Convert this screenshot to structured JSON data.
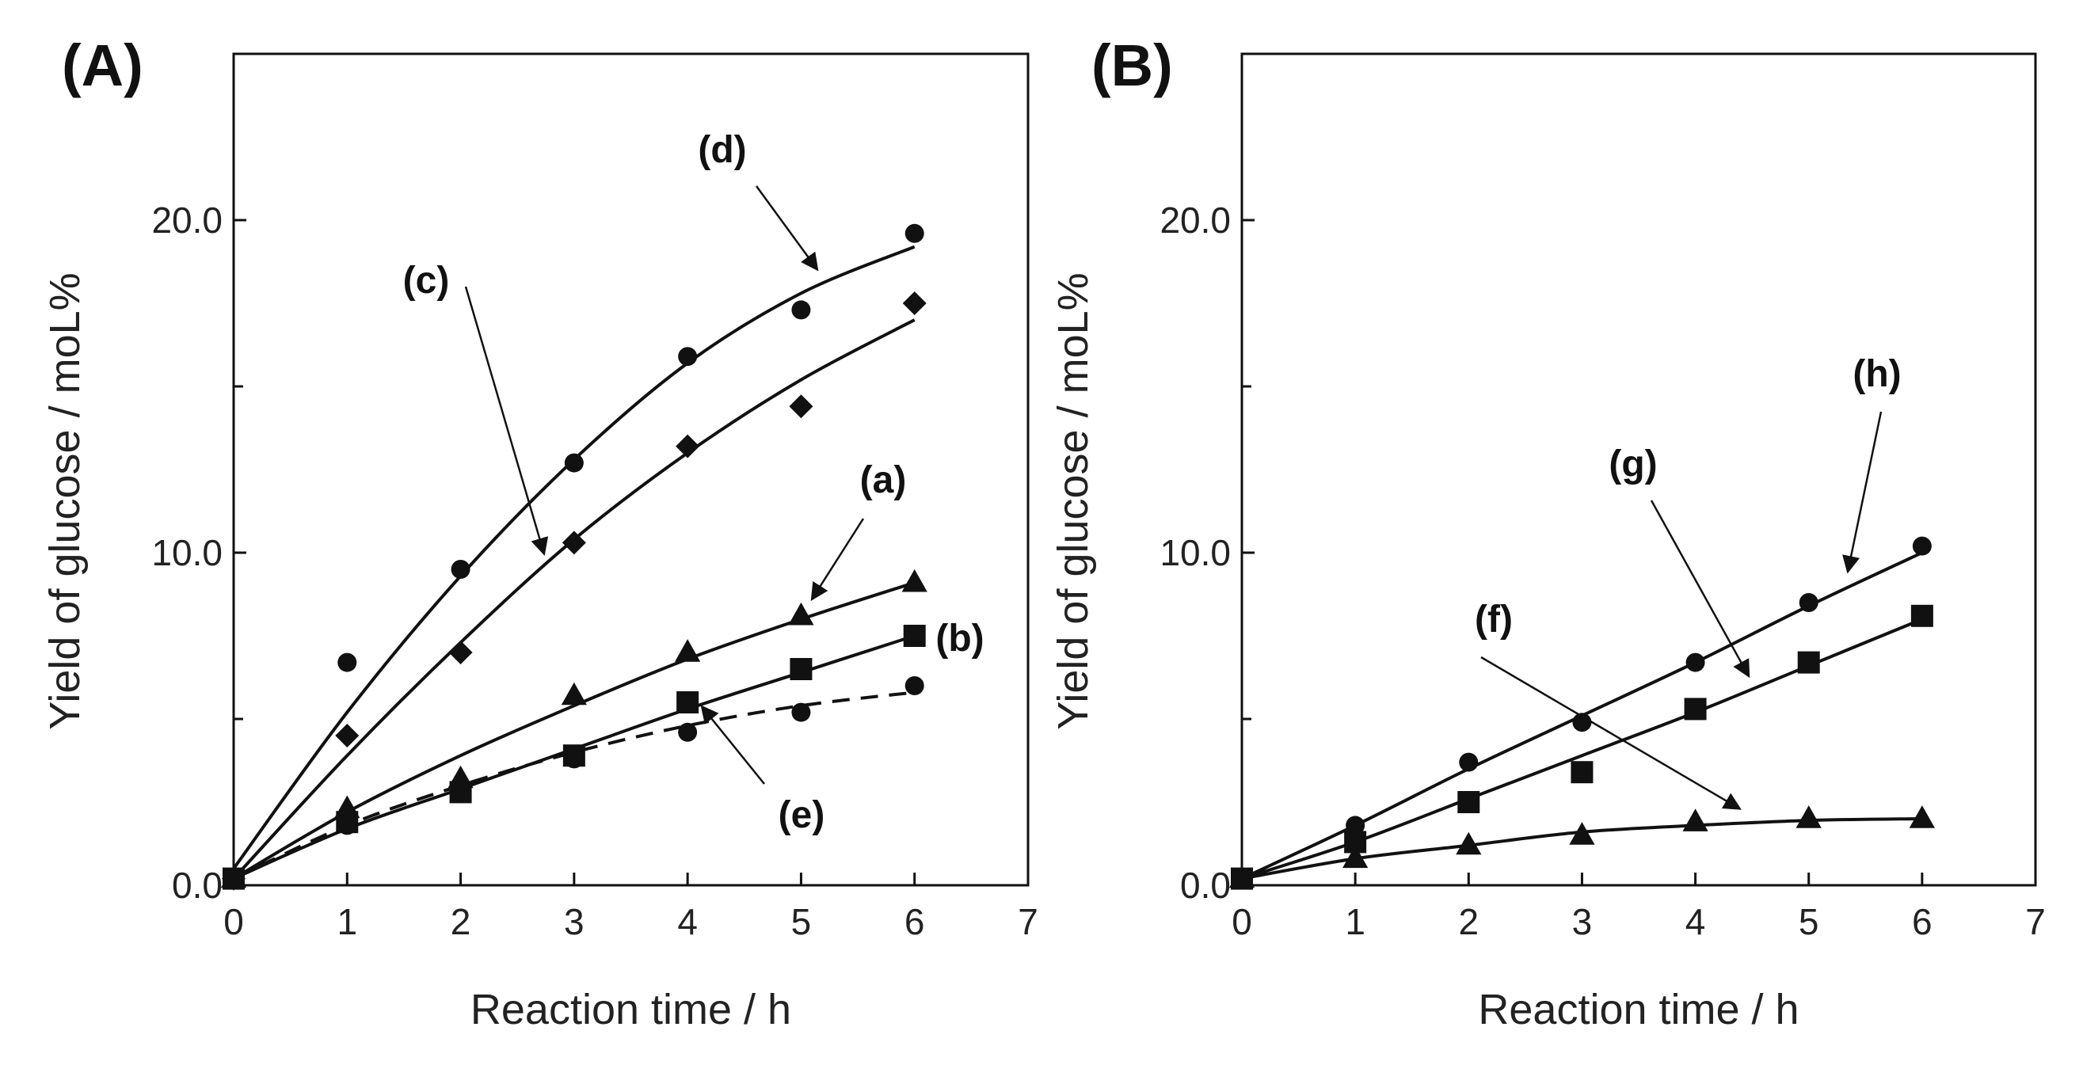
{
  "chart_data": [
    {
      "type": "scatter",
      "panel_label": "(A)",
      "xlabel": "Reaction time / h",
      "ylabel": "Yield of glucose / moL%",
      "xlim": [
        0,
        7
      ],
      "ylim": [
        0,
        25
      ],
      "x_ticks": [
        "0",
        "1",
        "2",
        "3",
        "4",
        "5",
        "6",
        "7"
      ],
      "y_ticks": [
        {
          "value": 0,
          "label": "0.0"
        },
        {
          "value": 10,
          "label": "10.0"
        },
        {
          "value": 20,
          "label": "20.0"
        }
      ],
      "y_minor_ticks": [
        5,
        15
      ],
      "series": [
        {
          "name": "(d)",
          "marker": "circle",
          "line": "solid",
          "x": [
            0,
            1,
            2,
            3,
            4,
            5,
            6
          ],
          "y": [
            0.2,
            6.7,
            9.5,
            12.7,
            15.9,
            17.3,
            19.6
          ],
          "fit": [
            0.5,
            5.2,
            9.3,
            12.8,
            15.7,
            17.8,
            19.2
          ]
        },
        {
          "name": "(c)",
          "marker": "diamond",
          "line": "solid",
          "x": [
            0,
            1,
            2,
            3,
            4,
            5,
            6
          ],
          "y": [
            0.2,
            4.5,
            7.0,
            10.3,
            13.2,
            14.4,
            17.5
          ],
          "fit": [
            0.2,
            3.9,
            7.3,
            10.4,
            13.0,
            15.2,
            17.0
          ]
        },
        {
          "name": "(a)",
          "marker": "triangle",
          "line": "solid",
          "x": [
            0,
            1,
            2,
            3,
            4,
            5,
            6
          ],
          "y": [
            0.2,
            2.3,
            3.2,
            5.7,
            7.0,
            8.1,
            9.1
          ],
          "fit": [
            0.2,
            2.2,
            3.9,
            5.4,
            6.8,
            8.0,
            9.1
          ]
        },
        {
          "name": "(b)",
          "marker": "square",
          "line": "solid",
          "x": [
            0,
            1,
            2,
            3,
            4,
            5,
            6
          ],
          "y": [
            0.2,
            1.9,
            2.8,
            3.9,
            5.5,
            6.5,
            7.5
          ],
          "fit": [
            0.2,
            1.7,
            2.9,
            4.1,
            5.3,
            6.4,
            7.5
          ]
        },
        {
          "name": "(e)",
          "marker": "circle",
          "line": "dashed",
          "x": [
            0,
            1,
            2,
            3,
            4,
            5,
            6
          ],
          "y": [
            0.2,
            1.8,
            3.0,
            3.8,
            4.6,
            5.2,
            6.0
          ],
          "fit": [
            0.2,
            1.8,
            3.0,
            4.0,
            4.8,
            5.4,
            5.8
          ]
        }
      ],
      "annotations": [
        {
          "label": "(d)",
          "series": "(d)",
          "at_x": 5.2
        },
        {
          "label": "(c)",
          "series": "(c)",
          "at_x": 2.75
        },
        {
          "label": "(a)",
          "series": "(a)",
          "at_x": 5.15
        },
        {
          "label": "(b)",
          "series": "(b)",
          "at_x": 6.0
        },
        {
          "label": "(e)",
          "series": "(e)",
          "at_x": 4.25
        }
      ]
    },
    {
      "type": "scatter",
      "panel_label": "(B)",
      "xlabel": "Reaction time / h",
      "ylabel": "Yield of glucose / moL%",
      "xlim": [
        0,
        7
      ],
      "ylim": [
        0,
        25
      ],
      "x_ticks": [
        "0",
        "1",
        "2",
        "3",
        "4",
        "5",
        "6",
        "7"
      ],
      "y_ticks": [
        {
          "value": 0,
          "label": "0.0"
        },
        {
          "value": 10,
          "label": "10.0"
        },
        {
          "value": 20,
          "label": "20.0"
        }
      ],
      "y_minor_ticks": [
        5,
        15
      ],
      "series": [
        {
          "name": "(h)",
          "marker": "circle",
          "line": "solid",
          "x": [
            0,
            1,
            2,
            3,
            4,
            5,
            6
          ],
          "y": [
            0.2,
            1.8,
            3.7,
            4.9,
            6.7,
            8.5,
            10.2
          ],
          "fit": [
            0.2,
            1.8,
            3.5,
            5.1,
            6.7,
            8.4,
            10.0
          ]
        },
        {
          "name": "(g)",
          "marker": "square",
          "line": "solid",
          "x": [
            0,
            1,
            2,
            3,
            4,
            5,
            6
          ],
          "y": [
            0.2,
            1.3,
            2.5,
            3.4,
            5.3,
            6.7,
            8.1
          ],
          "fit": [
            0.2,
            1.3,
            2.6,
            3.9,
            5.2,
            6.6,
            8.0
          ]
        },
        {
          "name": "(f)",
          "marker": "triangle",
          "line": "solid",
          "x": [
            0,
            1,
            2,
            3,
            4,
            5,
            6
          ],
          "y": [
            0.2,
            0.8,
            1.2,
            1.5,
            1.9,
            2.0,
            2.0
          ],
          "fit": [
            0.2,
            0.8,
            1.2,
            1.6,
            1.8,
            1.95,
            2.0
          ]
        }
      ],
      "annotations": [
        {
          "label": "(h)",
          "series": "(h)",
          "at_x": 5.4
        },
        {
          "label": "(g)",
          "series": "(g)",
          "at_x": 4.5
        },
        {
          "label": "(f)",
          "series": "(f)",
          "at_x": 4.45
        }
      ]
    }
  ]
}
